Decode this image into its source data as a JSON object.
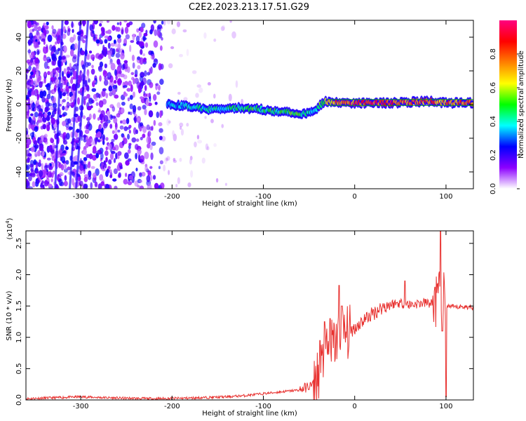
{
  "title": "C2E2.2023.213.17.51.G29",
  "chart_data": [
    {
      "type": "heatmap",
      "xlabel": "Height of straight line (km)",
      "ylabel": "Frequency (Hz)",
      "xlim": [
        -360,
        130
      ],
      "ylim": [
        -50,
        50
      ],
      "xticks": [
        -300,
        -200,
        -100,
        0,
        100
      ],
      "yticks": [
        -40,
        -20,
        0,
        20,
        40
      ],
      "colorbar": {
        "label": "Normalized spectral amplitude",
        "range": [
          0.0,
          1.0
        ],
        "ticks": [
          "0.0",
          "0.2",
          "0.4",
          "0.6",
          "0.8"
        ],
        "tick_values": [
          0.0,
          0.2,
          0.4,
          0.6,
          0.8
        ],
        "colors": [
          "#ffffff",
          "#8c00ff",
          "#0000ff",
          "#00ffff",
          "#00ff00",
          "#ffff00",
          "#ff8000",
          "#ff0000",
          "#ff0080"
        ]
      },
      "ridge": [
        {
          "x": -205,
          "f": 0,
          "amp": 0.35
        },
        {
          "x": -180,
          "f": -1,
          "amp": 0.4
        },
        {
          "x": -160,
          "f": -3,
          "amp": 0.45
        },
        {
          "x": -140,
          "f": -2,
          "amp": 0.45
        },
        {
          "x": -120,
          "f": -2,
          "amp": 0.5
        },
        {
          "x": -100,
          "f": -3,
          "amp": 0.5
        },
        {
          "x": -80,
          "f": -4,
          "amp": 0.5
        },
        {
          "x": -60,
          "f": -6,
          "amp": 0.55
        },
        {
          "x": -45,
          "f": -4,
          "amp": 0.45
        },
        {
          "x": -33,
          "f": 2,
          "amp": 0.6
        },
        {
          "x": -20,
          "f": 1,
          "amp": 0.85
        },
        {
          "x": 0,
          "f": 1,
          "amp": 0.9
        },
        {
          "x": 40,
          "f": 1,
          "amp": 0.9
        },
        {
          "x": 85,
          "f": 2,
          "amp": 0.85
        },
        {
          "x": 95,
          "f": 1,
          "amp": 0.8
        },
        {
          "x": 130,
          "f": 1,
          "amp": 0.9
        }
      ]
    },
    {
      "type": "line",
      "xlabel": "Height of straight line (km)",
      "ylabel": "SNR (10 * v/v)",
      "y_scale_label": "(x10",
      "y_scale_exp": "4",
      "y_scale_close": ")",
      "xlim": [
        -360,
        130
      ],
      "ylim": [
        0.0,
        2.7
      ],
      "xticks": [
        -300,
        -200,
        -100,
        0,
        100
      ],
      "yticks": [
        "0.0",
        "0.5",
        "1.0",
        "1.5",
        "2.0",
        "2.5"
      ],
      "ytick_values": [
        0.0,
        0.5,
        1.0,
        1.5,
        2.0,
        2.5
      ],
      "color": "#e8312f",
      "series": [
        {
          "values": [
            [
              -360,
              0.02
            ],
            [
              -320,
              0.04
            ],
            [
              -300,
              0.05
            ],
            [
              -260,
              0.03
            ],
            [
              -220,
              0.02
            ],
            [
              -180,
              0.03
            ],
            [
              -140,
              0.05
            ],
            [
              -120,
              0.07
            ],
            [
              -100,
              0.1
            ],
            [
              -80,
              0.13
            ],
            [
              -60,
              0.16
            ],
            [
              -45,
              0.25
            ],
            [
              -40,
              0.4
            ],
            [
              -35,
              0.6
            ],
            [
              -30,
              0.75
            ],
            [
              -25,
              0.85
            ],
            [
              -20,
              0.95
            ],
            [
              -15,
              1.0
            ],
            [
              -10,
              1.05
            ],
            [
              0,
              1.15
            ],
            [
              10,
              1.28
            ],
            [
              20,
              1.38
            ],
            [
              30,
              1.48
            ],
            [
              40,
              1.53
            ],
            [
              50,
              1.55
            ],
            [
              60,
              1.52
            ],
            [
              70,
              1.54
            ],
            [
              80,
              1.55
            ],
            [
              90,
              1.52
            ],
            [
              98,
              1.5
            ],
            [
              100,
              1.5
            ],
            [
              110,
              1.48
            ],
            [
              120,
              1.49
            ],
            [
              130,
              1.47
            ]
          ]
        }
      ],
      "spikes": [
        [
          -38,
          0.95
        ],
        [
          -33,
          1.25
        ],
        [
          -27,
          1.3
        ],
        [
          -17,
          1.83
        ],
        [
          -14,
          1.5
        ],
        [
          55,
          1.9
        ],
        [
          88,
          1.8
        ],
        [
          94,
          2.7
        ],
        [
          96,
          1.1
        ],
        [
          100,
          0.05
        ]
      ]
    }
  ]
}
